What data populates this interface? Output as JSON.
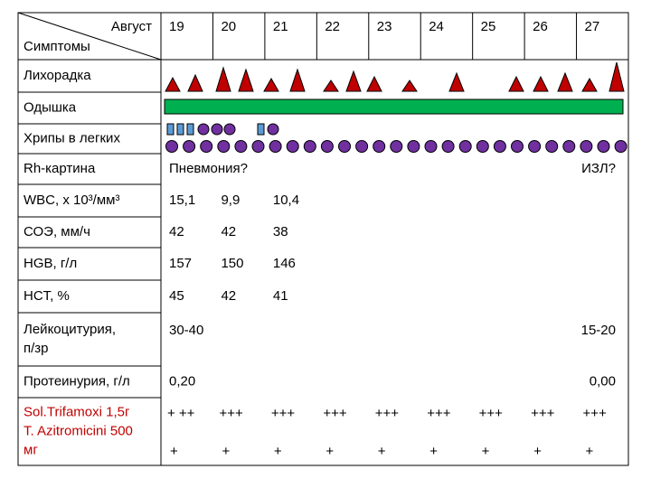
{
  "header": {
    "month": "Август",
    "label": "Симптомы",
    "days": [
      "19",
      "20",
      "21",
      "22",
      "23",
      "24",
      "25",
      "26",
      "27"
    ]
  },
  "rows": [
    {
      "label": [
        "Лихорадка"
      ]
    },
    {
      "label": [
        "Одышка"
      ]
    },
    {
      "label": [
        "Хрипы в легких"
      ]
    },
    {
      "label": [
        "Rh-картина"
      ],
      "left": "Пневмония?",
      "right": "ИЗЛ?"
    },
    {
      "label": [
        "WBC, х 10³/мм³"
      ],
      "cells": [
        "15,1",
        "9,9",
        "10,4"
      ]
    },
    {
      "label": [
        "СОЭ, мм/ч"
      ],
      "cells": [
        "42",
        "42",
        "38"
      ]
    },
    {
      "label": [
        "HGB, г/л"
      ],
      "cells": [
        "157",
        "150",
        "146"
      ]
    },
    {
      "label": [
        "HCT, %"
      ],
      "cells": [
        "45",
        "42",
        "41"
      ]
    },
    {
      "label": [
        "Лейкоцитурия,",
        "п/зр"
      ],
      "left": "30-40",
      "right": "15-20"
    },
    {
      "label": [
        "Протеинурия, г/л"
      ],
      "left": "0,20",
      "right": "0,00"
    },
    {
      "label": [
        "Sol.Trifamoxi 1,5г",
        "T. Azitromicini 500",
        "мг"
      ],
      "doses": [
        "+ ++",
        "+++",
        "+++",
        "+++",
        "+++",
        "+++",
        "+++",
        "+++",
        "+++"
      ],
      "doses2": [
        "+",
        "+",
        "+",
        "+",
        "+",
        "+",
        "+",
        "+",
        "+"
      ]
    }
  ]
}
